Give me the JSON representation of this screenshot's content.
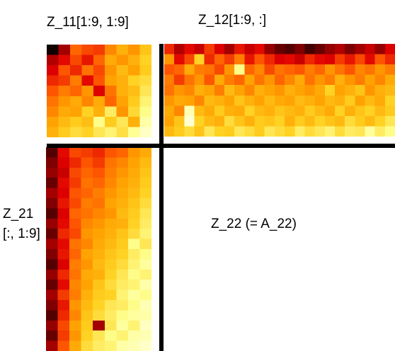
{
  "labels": {
    "z11": "Z_11[1:9, 1:9]",
    "z12": "Z_12[1:9, :]",
    "z21_line1": "Z_21",
    "z21_line2": "[:, 1:9]",
    "z22": "Z_22 (= A_22)"
  },
  "colormap": {
    "name": "hot",
    "stops": [
      "#000000",
      "#7a0000",
      "#e00000",
      "#ff5a00",
      "#ffa000",
      "#ffd020",
      "#ffff90",
      "#ffffe0"
    ]
  },
  "blocks": {
    "z11": {
      "rows": 9,
      "cols": 9,
      "values": [
        [
          0.02,
          0.2,
          0.45,
          0.4,
          0.38,
          0.52,
          0.62,
          0.55,
          0.68
        ],
        [
          0.22,
          0.3,
          0.4,
          0.32,
          0.45,
          0.6,
          0.55,
          0.62,
          0.72
        ],
        [
          0.28,
          0.42,
          0.35,
          0.48,
          0.4,
          0.55,
          0.65,
          0.58,
          0.7
        ],
        [
          0.35,
          0.38,
          0.5,
          0.3,
          0.42,
          0.58,
          0.62,
          0.72,
          0.75
        ],
        [
          0.42,
          0.5,
          0.45,
          0.55,
          0.28,
          0.48,
          0.62,
          0.66,
          0.78
        ],
        [
          0.48,
          0.55,
          0.6,
          0.52,
          0.6,
          0.45,
          0.58,
          0.7,
          0.82
        ],
        [
          0.52,
          0.6,
          0.58,
          0.72,
          0.62,
          0.8,
          0.55,
          0.74,
          0.85
        ],
        [
          0.58,
          0.65,
          0.7,
          0.66,
          0.85,
          0.7,
          0.78,
          0.62,
          0.9
        ],
        [
          0.62,
          0.7,
          0.75,
          0.72,
          0.78,
          0.82,
          0.76,
          0.86,
          0.95
        ]
      ]
    },
    "z12": {
      "rows": 9,
      "cols": 23,
      "values": [
        [
          0.35,
          0.22,
          0.3,
          0.25,
          0.38,
          0.28,
          0.2,
          0.32,
          0.25,
          0.3,
          0.18,
          0.12,
          0.1,
          0.15,
          0.08,
          0.12,
          0.18,
          0.22,
          0.15,
          0.2,
          0.25,
          0.18,
          0.28
        ],
        [
          0.55,
          0.3,
          0.4,
          0.72,
          0.35,
          0.45,
          0.38,
          0.5,
          0.32,
          0.42,
          0.35,
          0.28,
          0.3,
          0.25,
          0.35,
          0.3,
          0.28,
          0.38,
          0.32,
          0.4,
          0.3,
          0.42,
          0.35
        ],
        [
          0.42,
          0.45,
          0.6,
          0.5,
          0.48,
          0.4,
          0.55,
          0.85,
          0.45,
          0.52,
          0.4,
          0.48,
          0.45,
          0.42,
          0.5,
          0.45,
          0.55,
          0.48,
          0.42,
          0.52,
          0.48,
          0.55,
          0.5
        ],
        [
          0.5,
          0.38,
          0.48,
          0.55,
          0.42,
          0.6,
          0.5,
          0.45,
          0.58,
          0.48,
          0.55,
          0.45,
          0.52,
          0.6,
          0.48,
          0.55,
          0.5,
          0.62,
          0.55,
          0.5,
          0.58,
          0.52,
          0.6
        ],
        [
          0.48,
          0.55,
          0.52,
          0.62,
          0.58,
          0.5,
          0.65,
          0.58,
          0.52,
          0.62,
          0.58,
          0.55,
          0.62,
          0.58,
          0.55,
          0.6,
          0.72,
          0.58,
          0.62,
          0.68,
          0.55,
          0.62,
          0.65
        ],
        [
          0.55,
          0.6,
          0.58,
          0.52,
          0.65,
          0.62,
          0.58,
          0.68,
          0.62,
          0.58,
          0.65,
          0.6,
          0.58,
          0.65,
          0.62,
          0.58,
          0.65,
          0.62,
          0.7,
          0.58,
          0.65,
          0.6,
          0.72
        ],
        [
          0.6,
          0.52,
          0.92,
          0.65,
          0.6,
          0.7,
          0.62,
          0.6,
          0.72,
          0.65,
          0.62,
          0.68,
          0.65,
          0.62,
          0.7,
          0.65,
          0.6,
          0.72,
          0.62,
          0.68,
          0.72,
          0.65,
          0.7
        ],
        [
          0.58,
          0.68,
          0.98,
          0.72,
          0.65,
          0.62,
          0.75,
          0.68,
          0.62,
          0.7,
          0.68,
          0.72,
          0.62,
          0.7,
          0.65,
          0.72,
          0.68,
          0.65,
          0.75,
          0.7,
          0.65,
          0.72,
          0.78
        ],
        [
          0.65,
          0.7,
          0.75,
          0.68,
          0.78,
          0.72,
          0.7,
          0.78,
          0.75,
          0.7,
          0.78,
          0.75,
          0.72,
          0.8,
          0.75,
          0.78,
          0.82,
          0.75,
          0.8,
          0.78,
          0.88,
          0.8,
          0.85
        ]
      ]
    },
    "z21": {
      "rows": 20,
      "cols": 9,
      "values": [
        [
          0.1,
          0.3,
          0.4,
          0.38,
          0.35,
          0.42,
          0.45,
          0.55,
          0.6
        ],
        [
          0.15,
          0.28,
          0.35,
          0.42,
          0.38,
          0.48,
          0.52,
          0.58,
          0.65
        ],
        [
          0.18,
          0.25,
          0.4,
          0.45,
          0.42,
          0.5,
          0.55,
          0.6,
          0.68
        ],
        [
          0.12,
          0.3,
          0.38,
          0.48,
          0.45,
          0.52,
          0.58,
          0.62,
          0.7
        ],
        [
          0.2,
          0.28,
          0.42,
          0.45,
          0.5,
          0.55,
          0.6,
          0.65,
          0.72
        ],
        [
          0.15,
          0.32,
          0.4,
          0.5,
          0.48,
          0.58,
          0.62,
          0.68,
          0.75
        ],
        [
          0.1,
          0.28,
          0.45,
          0.48,
          0.52,
          0.55,
          0.65,
          0.7,
          0.78
        ],
        [
          0.18,
          0.3,
          0.42,
          0.52,
          0.55,
          0.6,
          0.62,
          0.72,
          0.8
        ],
        [
          0.12,
          0.35,
          0.4,
          0.55,
          0.58,
          0.62,
          0.68,
          0.75,
          0.82
        ],
        [
          0.2,
          0.3,
          0.48,
          0.52,
          0.6,
          0.65,
          0.7,
          0.85,
          0.78
        ],
        [
          0.15,
          0.32,
          0.45,
          0.58,
          0.62,
          0.68,
          0.72,
          0.8,
          0.85
        ],
        [
          0.1,
          0.28,
          0.5,
          0.55,
          0.65,
          0.7,
          0.75,
          0.82,
          0.88
        ],
        [
          0.18,
          0.35,
          0.48,
          0.6,
          0.62,
          0.72,
          0.78,
          0.85,
          0.82
        ],
        [
          0.12,
          0.3,
          0.52,
          0.58,
          0.68,
          0.75,
          0.8,
          0.82,
          0.9
        ],
        [
          0.2,
          0.38,
          0.5,
          0.62,
          0.7,
          0.72,
          0.82,
          0.88,
          0.85
        ],
        [
          0.15,
          0.32,
          0.55,
          0.65,
          0.72,
          0.78,
          0.8,
          0.85,
          0.92
        ],
        [
          0.1,
          0.35,
          0.52,
          0.68,
          0.75,
          0.8,
          0.85,
          0.88,
          0.9
        ],
        [
          0.18,
          0.4,
          0.58,
          0.7,
          0.2,
          0.78,
          0.88,
          0.82,
          0.95
        ],
        [
          0.12,
          0.38,
          0.55,
          0.72,
          0.78,
          0.85,
          0.82,
          0.9,
          0.92
        ],
        [
          0.2,
          0.42,
          0.6,
          0.75,
          0.8,
          0.82,
          0.9,
          0.92,
          0.96
        ]
      ]
    }
  }
}
